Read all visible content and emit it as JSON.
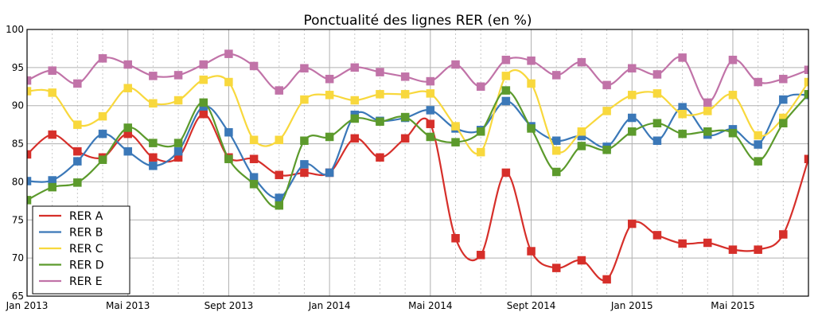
{
  "chart_data": {
    "type": "line",
    "title": "Ponctualité des lignes RER (en %)",
    "xlabel": "",
    "ylabel": "",
    "ylim": [
      65,
      100
    ],
    "y_ticks": [
      65,
      70,
      75,
      80,
      85,
      90,
      95,
      100
    ],
    "x_month_count": 31,
    "x_ticks": [
      {
        "index": 0,
        "label": "Jan 2013"
      },
      {
        "index": 4,
        "label": "Mai 2013"
      },
      {
        "index": 8,
        "label": "Sept 2013"
      },
      {
        "index": 12,
        "label": "Jan 2014"
      },
      {
        "index": 16,
        "label": "Mai 2014"
      },
      {
        "index": 20,
        "label": "Sept 2014"
      },
      {
        "index": 24,
        "label": "Jan 2015"
      },
      {
        "index": 28,
        "label": "Mai 2015"
      }
    ],
    "grid": true,
    "legend_position": "bottom-left",
    "series": [
      {
        "name": "RER A",
        "color": "#d62f2a",
        "values": [
          83.6,
          86.2,
          84.0,
          83.2,
          86.3,
          83.2,
          83.2,
          88.9,
          83.2,
          83.0,
          80.9,
          81.2,
          81.2,
          85.7,
          83.2,
          85.7,
          87.6,
          72.6,
          70.4,
          81.2,
          70.9,
          68.7,
          69.7,
          67.2,
          74.5,
          73.0,
          71.9,
          72.0,
          71.1,
          71.1,
          73.1,
          83.0
        ]
      },
      {
        "name": "RER B",
        "color": "#3b78b8",
        "values": [
          80.1,
          80.2,
          82.7,
          86.3,
          84.0,
          82.1,
          84.0,
          89.9,
          86.5,
          80.6,
          77.9,
          82.3,
          81.2,
          88.8,
          88.0,
          88.4,
          89.4,
          87.0,
          86.8,
          90.6,
          87.3,
          85.4,
          86.0,
          84.6,
          88.4,
          85.4,
          89.8,
          86.2,
          86.9,
          84.9,
          90.8,
          91.4
        ]
      },
      {
        "name": "RER C",
        "color": "#f8d83d",
        "values": [
          91.9,
          91.7,
          87.5,
          88.6,
          92.3,
          90.3,
          90.7,
          93.4,
          93.1,
          85.5,
          85.5,
          90.8,
          91.4,
          90.7,
          91.5,
          91.5,
          91.6,
          87.3,
          83.9,
          93.9,
          92.9,
          84.1,
          86.6,
          89.3,
          91.4,
          91.6,
          88.9,
          89.3,
          91.4,
          86.1,
          88.4,
          93.1
        ]
      },
      {
        "name": "RER D",
        "color": "#5c9a2c",
        "values": [
          77.6,
          79.3,
          79.9,
          82.9,
          87.1,
          85.1,
          85.1,
          90.4,
          83.0,
          79.7,
          76.9,
          85.4,
          85.9,
          88.3,
          87.9,
          88.5,
          85.9,
          85.2,
          86.6,
          92.0,
          87.0,
          81.3,
          84.7,
          84.2,
          86.6,
          87.7,
          86.3,
          86.6,
          86.4,
          82.7,
          87.7,
          91.5
        ]
      },
      {
        "name": "RER E",
        "color": "#c173a8",
        "values": [
          93.3,
          94.6,
          92.9,
          96.2,
          95.4,
          93.9,
          94.0,
          95.4,
          96.8,
          95.2,
          92.0,
          94.9,
          93.5,
          95.0,
          94.4,
          93.8,
          93.2,
          95.4,
          92.5,
          96.0,
          95.9,
          94.0,
          95.7,
          92.7,
          94.9,
          94.1,
          96.3,
          90.4,
          96.0,
          93.1,
          93.5,
          94.7
        ]
      }
    ]
  }
}
